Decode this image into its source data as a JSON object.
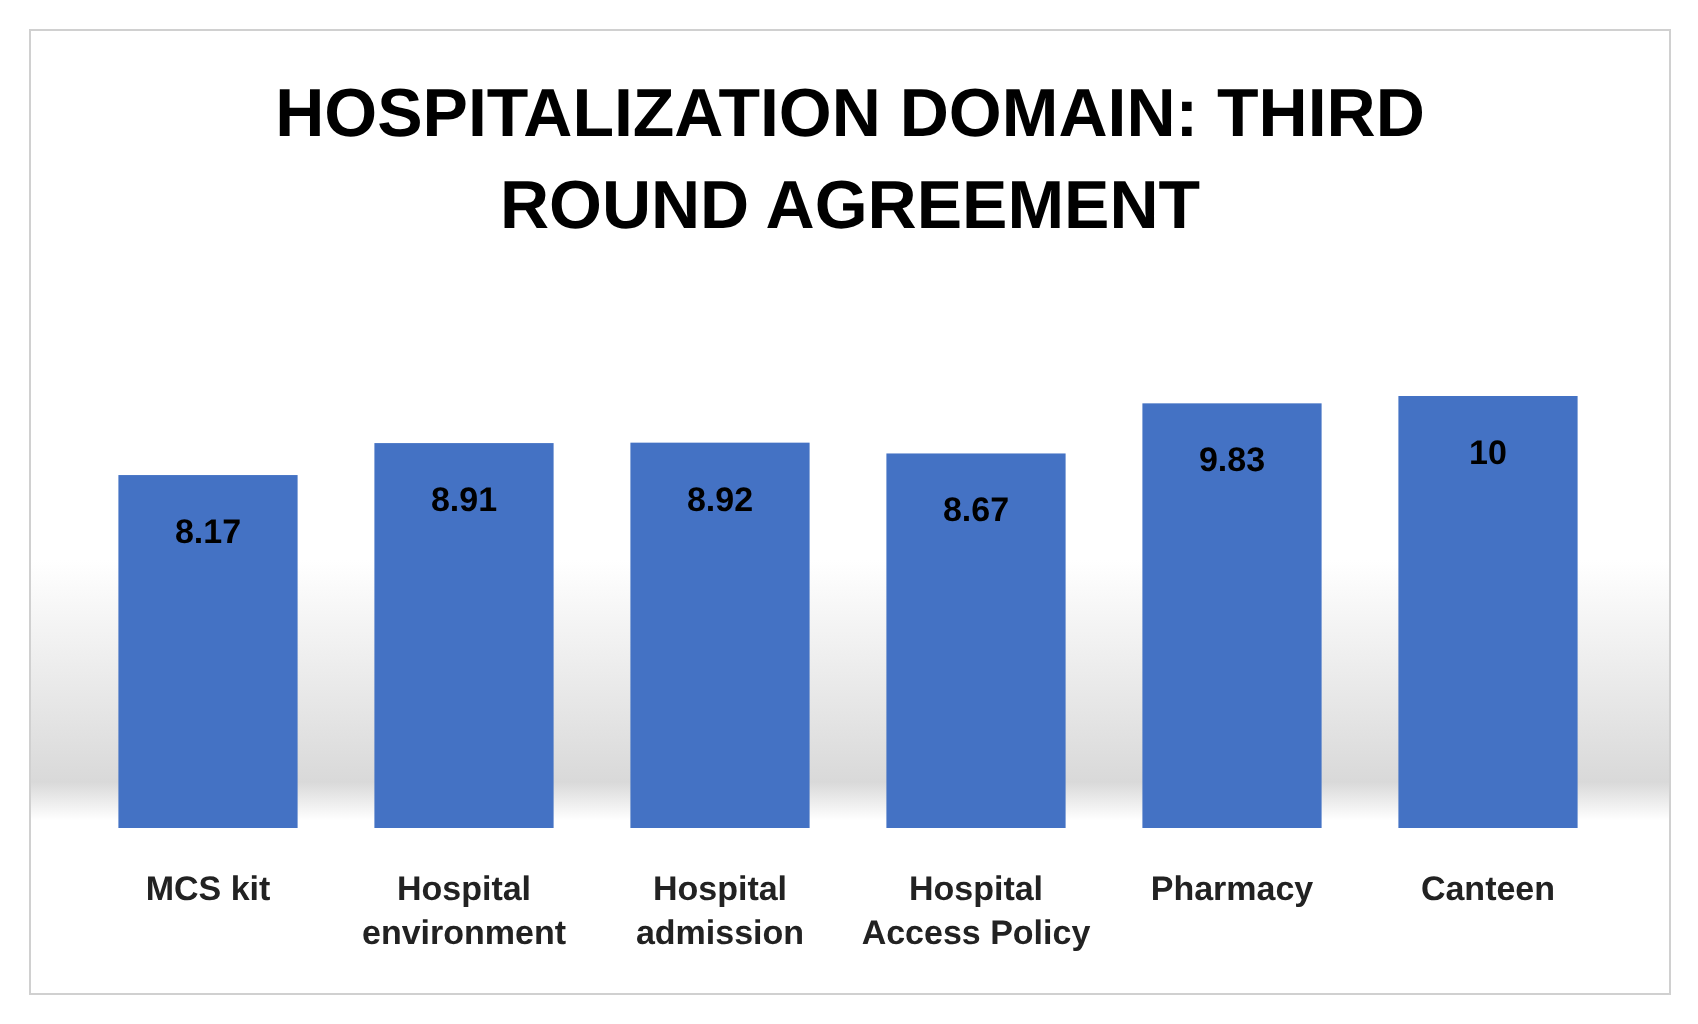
{
  "chart_data": {
    "type": "bar",
    "title": "HOSPITALIZATION DOMAIN: THIRD ROUND AGREEMENT",
    "categories": [
      "MCS kit",
      "Hospital environment",
      "Hospital admission",
      "Hospital Access Policy",
      "Pharmacy",
      "Canteen"
    ],
    "values": [
      8.17,
      8.91,
      8.92,
      8.67,
      9.83,
      10
    ],
    "color": "#4472c4",
    "data_labels": true
  }
}
